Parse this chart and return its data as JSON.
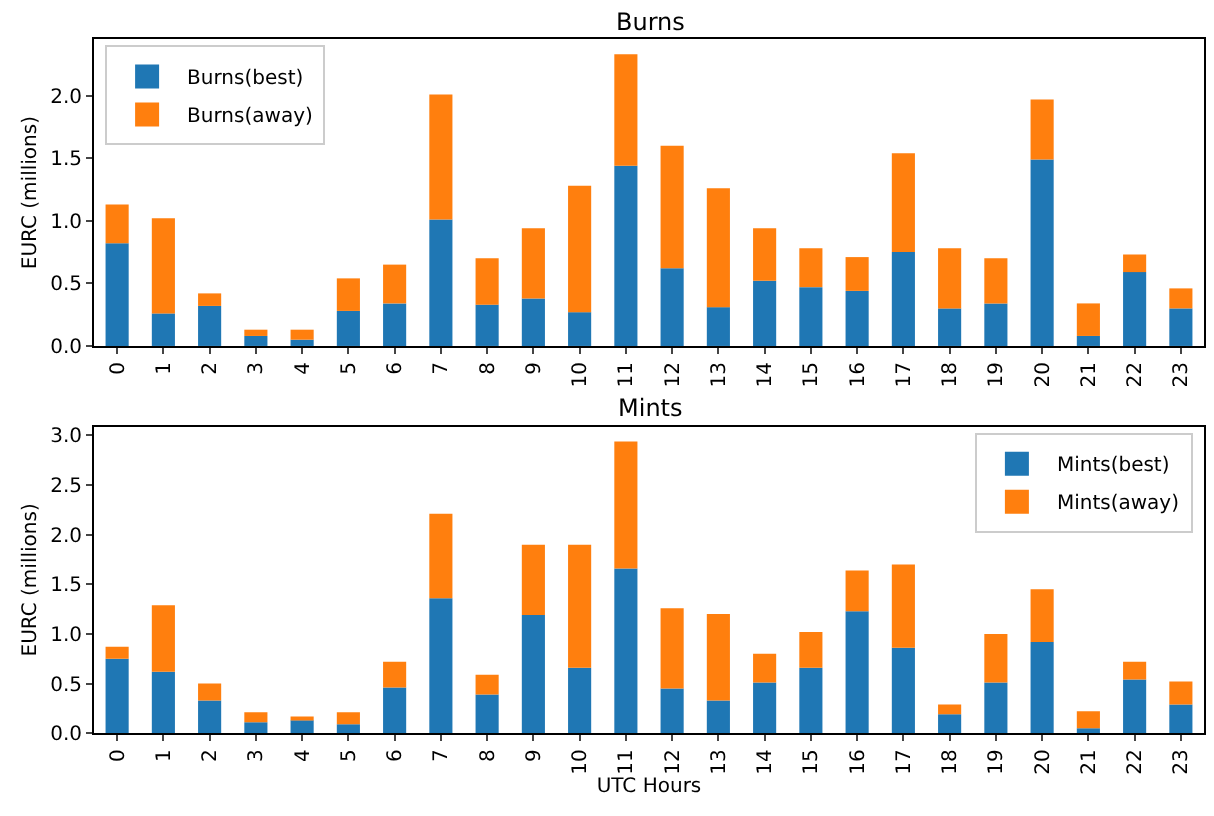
{
  "chart_data": [
    {
      "type": "bar",
      "title": "Burns",
      "ylabel": "EURC (millions)",
      "stacked": true,
      "legend": "top left",
      "categories": [
        "0",
        "1",
        "2",
        "3",
        "4",
        "5",
        "6",
        "7",
        "8",
        "9",
        "10",
        "11",
        "12",
        "13",
        "14",
        "15",
        "16",
        "17",
        "18",
        "19",
        "20",
        "21",
        "22",
        "23"
      ],
      "series": [
        {
          "name": "Burns(best)",
          "color": "#1f77b4",
          "values": [
            0.82,
            0.26,
            0.32,
            0.08,
            0.05,
            0.28,
            0.34,
            1.01,
            0.33,
            0.38,
            0.27,
            1.44,
            0.62,
            0.31,
            0.52,
            0.47,
            0.44,
            0.75,
            0.3,
            0.34,
            1.49,
            0.08,
            0.59,
            0.3
          ]
        },
        {
          "name": "Burns(away)",
          "color": "#ff7f0e",
          "values": [
            0.31,
            0.76,
            0.1,
            0.05,
            0.08,
            0.26,
            0.31,
            1.0,
            0.37,
            0.56,
            1.01,
            0.89,
            0.98,
            0.95,
            0.42,
            0.31,
            0.27,
            0.79,
            0.48,
            0.36,
            0.48,
            0.26,
            0.14,
            0.16
          ]
        }
      ],
      "ylim": [
        0,
        2.45
      ],
      "yticks": [
        {
          "value": 0,
          "label": "0.0"
        },
        {
          "value": 0.5,
          "label": "0.5"
        },
        {
          "value": 1,
          "label": "1.0"
        },
        {
          "value": 1.5,
          "label": "1.5"
        },
        {
          "value": 2,
          "label": "2.0"
        }
      ]
    },
    {
      "type": "bar",
      "title": "Mints",
      "ylabel": "EURC (millions)",
      "xlabel": "UTC Hours",
      "stacked": true,
      "legend": "top right",
      "categories": [
        "0",
        "1",
        "2",
        "3",
        "4",
        "5",
        "6",
        "7",
        "8",
        "9",
        "10",
        "11",
        "12",
        "13",
        "14",
        "15",
        "16",
        "17",
        "18",
        "19",
        "20",
        "21",
        "22",
        "23"
      ],
      "series": [
        {
          "name": "Mints(best)",
          "color": "#1f77b4",
          "values": [
            0.75,
            0.62,
            0.33,
            0.11,
            0.13,
            0.09,
            0.46,
            1.36,
            0.39,
            1.19,
            0.66,
            1.66,
            0.45,
            0.33,
            0.51,
            0.66,
            1.23,
            0.86,
            0.19,
            0.51,
            0.92,
            0.05,
            0.54,
            0.29
          ]
        },
        {
          "name": "Mints(away)",
          "color": "#ff7f0e",
          "values": [
            0.12,
            0.67,
            0.17,
            0.1,
            0.02,
            0.12,
            0.26,
            0.85,
            0.2,
            0.71,
            1.24,
            1.28,
            0.81,
            0.87,
            0.29,
            0.36,
            0.41,
            0.84,
            0.1,
            0.49,
            0.53,
            0.17,
            0.18,
            0.23
          ]
        }
      ],
      "ylim": [
        0,
        3.09
      ],
      "yticks": [
        {
          "value": 0,
          "label": "0.0"
        },
        {
          "value": 0.5,
          "label": "0.5"
        },
        {
          "value": 1,
          "label": "1.0"
        },
        {
          "value": 1.5,
          "label": "1.5"
        },
        {
          "value": 2,
          "label": "2.0"
        },
        {
          "value": 2.5,
          "label": "2.5"
        },
        {
          "value": 3,
          "label": "3.0"
        }
      ]
    }
  ]
}
